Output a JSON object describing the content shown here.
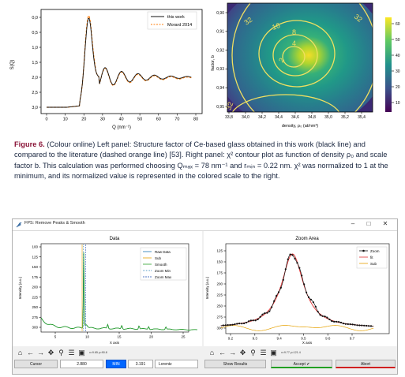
{
  "left_chart": {
    "legend": [
      "this work",
      "Morard 2014"
    ],
    "xlabel": "Q (nm⁻¹)",
    "ylabel": "S(Q)",
    "xticks": [
      "0",
      "10",
      "20",
      "30",
      "40",
      "50",
      "60",
      "70",
      "80"
    ],
    "yticks": [
      "0,0",
      "0,5",
      "1,0",
      "1,5",
      "2,0",
      "2,5",
      "3,0"
    ],
    "colors": {
      "this_work": "#111111",
      "morard": "#ff7f0e"
    }
  },
  "right_chart": {
    "xlabel": "density, ρ₀ (at/nm³)",
    "ylabel": "factor, b",
    "xticks": [
      "33,8",
      "34,0",
      "34,2",
      "34,4",
      "34,6",
      "34,8",
      "35,0",
      "35,2",
      "35,4"
    ],
    "yticks": [
      "0,90",
      "0,91",
      "0,92",
      "0,93",
      "0,94",
      "0,95"
    ],
    "colorbar_ticks": [
      "10",
      "20",
      "30",
      "40",
      "50",
      "60"
    ],
    "contour_labels": [
      "32",
      "16",
      "8",
      "4",
      "2",
      "32",
      "32"
    ]
  },
  "caption": {
    "figure_label": "Figure 6.",
    "text": "(Colour online) Left panel: Structure factor of Ce-based glass obtained in this work (black line) and compared to the literature (dashed orange line) [53]. Right panel: χ² contour plot as function of density ρ₀ and scale factor b. This calculation was performed choosing Qₘₐₓ = 78 nm⁻¹ and rₘᵢₙ = 0.22 nm. χ² was normalized to 1 at the minimum, and its normalized value is represented in the colored scale to the right."
  },
  "window": {
    "title": "FPS: Remove Peaks & Smooth",
    "controls": [
      "–",
      "□",
      "✕"
    ]
  },
  "data_plot": {
    "title": "Data",
    "xlabel": "X axis",
    "ylabel": "Intensity (a.u.)",
    "xticks": [
      "5",
      "10",
      "15",
      "20",
      "25"
    ],
    "yticks": [
      "100",
      "125",
      "150",
      "175",
      "200",
      "225",
      "250",
      "275",
      "300"
    ],
    "legend": [
      "Raw Data",
      "Sub",
      "Smooth",
      "Zoom Min",
      "Zoom Max"
    ],
    "coord_readout": "x=9.65 y=90.8"
  },
  "zoom_plot": {
    "title": "Zoom Area",
    "xlabel": "X axis",
    "ylabel": "Intensity (a.u.)",
    "xticks": [
      "9.2",
      "9.3",
      "9.4",
      "9.5",
      "9.6",
      "9.7"
    ],
    "yticks": [
      "125",
      "150",
      "175",
      "200",
      "225",
      "250",
      "275",
      "300"
    ],
    "legend": [
      "Zoom",
      "fit",
      "Sub"
    ],
    "coord_readout": "x=9.77 y=121.4"
  },
  "bottom_bar": {
    "cursor_label": "Cursor",
    "cursor_value": "2.880",
    "min_label": "MIN",
    "min_value": "3.191",
    "mode_label": "Lorentz",
    "show_results": "Show Results",
    "accept": "Accept ✔",
    "abort": "Abort"
  }
}
